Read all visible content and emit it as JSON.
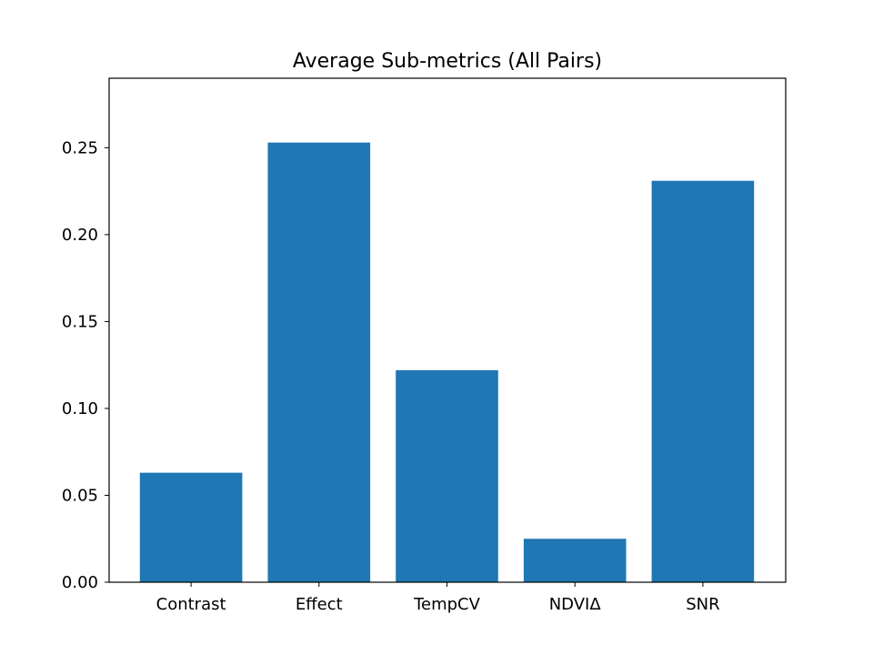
{
  "chart_data": {
    "type": "bar",
    "title": "Average Sub-metrics (All Pairs)",
    "xlabel": "",
    "ylabel": "",
    "categories": [
      "Contrast",
      "Effect",
      "TempCV",
      "NDVIΔ",
      "SNR"
    ],
    "values": [
      0.063,
      0.253,
      0.122,
      0.025,
      0.231
    ],
    "ylim": [
      0,
      0.29
    ],
    "yticks": [
      0.0,
      0.05,
      0.1,
      0.15,
      0.2,
      0.25
    ],
    "ytick_labels": [
      "0.00",
      "0.05",
      "0.10",
      "0.15",
      "0.20",
      "0.25"
    ],
    "grid": false,
    "bar_color": "#1f77b4"
  }
}
